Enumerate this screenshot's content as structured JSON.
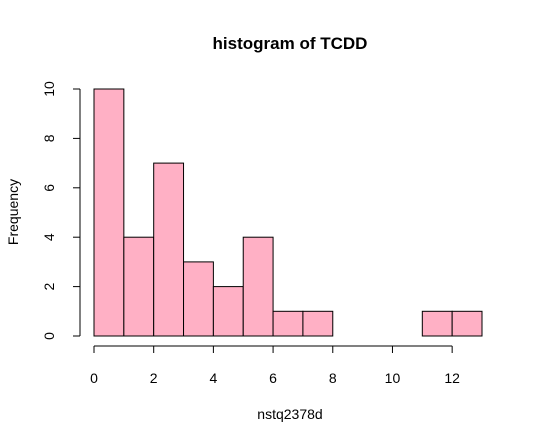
{
  "chart_data": {
    "type": "bar",
    "title": "histogram of TCDD",
    "xlabel": "nstq2378d",
    "ylabel": "Frequency",
    "bins": [
      {
        "from": 0,
        "to": 1,
        "count": 10
      },
      {
        "from": 1,
        "to": 2,
        "count": 4
      },
      {
        "from": 2,
        "to": 3,
        "count": 7
      },
      {
        "from": 3,
        "to": 4,
        "count": 3
      },
      {
        "from": 4,
        "to": 5,
        "count": 2
      },
      {
        "from": 5,
        "to": 6,
        "count": 4
      },
      {
        "from": 6,
        "to": 7,
        "count": 1
      },
      {
        "from": 7,
        "to": 8,
        "count": 1
      },
      {
        "from": 8,
        "to": 9,
        "count": 0
      },
      {
        "from": 9,
        "to": 10,
        "count": 0
      },
      {
        "from": 10,
        "to": 11,
        "count": 0
      },
      {
        "from": 11,
        "to": 12,
        "count": 1
      },
      {
        "from": 12,
        "to": 13,
        "count": 1
      }
    ],
    "xlim": [
      0,
      13
    ],
    "ylim": [
      0,
      10
    ],
    "xticks": [
      0,
      2,
      4,
      6,
      8,
      10,
      12
    ],
    "yticks": [
      0,
      2,
      4,
      6,
      8,
      10
    ],
    "colors": {
      "bar_fill": "#ffb0c5",
      "bar_stroke": "#000000"
    },
    "grid": false,
    "legend": "none"
  }
}
